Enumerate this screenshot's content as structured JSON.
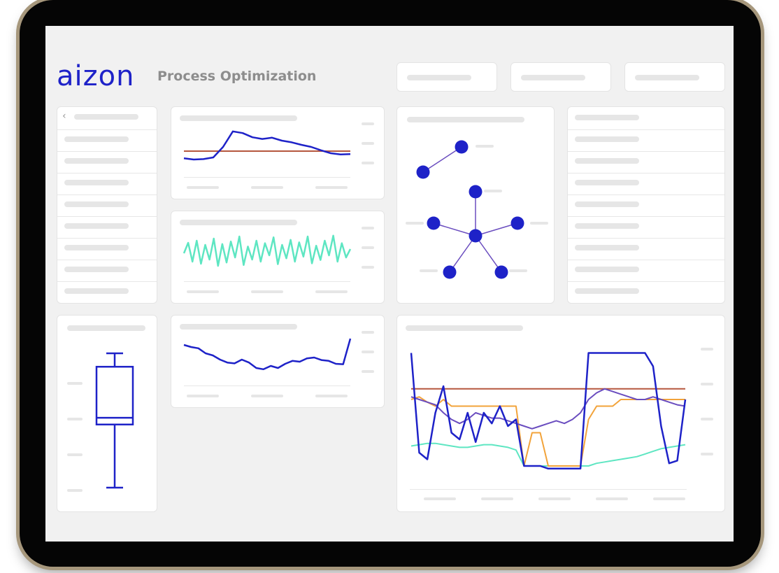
{
  "brand": {
    "logo": "aizon",
    "color": "#1e22c8"
  },
  "header": {
    "title": "Process Optimization"
  },
  "icons": {
    "back": "chevron-left-icon"
  },
  "colors": {
    "blue": "#1e22c8",
    "teal": "#5ee6c2",
    "brown": "#b5573e",
    "orange": "#f2a33a",
    "purple": "#6a4dbf",
    "device_frame": "#a6977c"
  },
  "chart_data": [
    {
      "type": "line",
      "name_hint": "trend-vs-threshold",
      "series": [
        {
          "values": [
            0.28,
            0.25,
            0.26,
            0.3,
            0.55,
            0.92,
            0.88,
            0.78,
            0.74,
            0.77,
            0.7,
            0.66,
            0.6,
            0.55,
            0.47,
            0.4,
            0.37,
            0.38
          ]
        },
        {
          "values": [
            0.45,
            0.45,
            0.45,
            0.45,
            0.45,
            0.45,
            0.45,
            0.45,
            0.45,
            0.45,
            0.45,
            0.45,
            0.45,
            0.45,
            0.45,
            0.45,
            0.45,
            0.45
          ]
        }
      ]
    },
    {
      "type": "line",
      "name_hint": "oscillation",
      "series": [
        {
          "values": [
            0.5,
            0.75,
            0.3,
            0.8,
            0.25,
            0.7,
            0.35,
            0.85,
            0.2,
            0.72,
            0.28,
            0.78,
            0.4,
            0.9,
            0.22,
            0.66,
            0.35,
            0.8,
            0.3,
            0.74,
            0.45,
            0.88,
            0.24,
            0.7,
            0.38,
            0.82,
            0.3,
            0.76,
            0.42,
            0.9,
            0.26,
            0.68,
            0.34,
            0.8,
            0.45,
            0.92,
            0.3,
            0.74,
            0.4,
            0.6
          ]
        }
      ]
    },
    {
      "type": "line",
      "name_hint": "drift",
      "series": [
        {
          "values": [
            0.8,
            0.75,
            0.72,
            0.6,
            0.55,
            0.45,
            0.38,
            0.36,
            0.45,
            0.38,
            0.25,
            0.22,
            0.3,
            0.25,
            0.35,
            0.42,
            0.4,
            0.48,
            0.5,
            0.44,
            0.42,
            0.35,
            0.34,
            0.95
          ]
        }
      ]
    },
    {
      "type": "boxplot",
      "min": 0.0,
      "q1": 0.47,
      "median": 0.52,
      "q3": 0.9,
      "max": 1.0
    },
    {
      "type": "line",
      "name_hint": "multi-signal",
      "series": [
        {
          "values": [
            0.95,
            0.2,
            0.15,
            0.5,
            0.7,
            0.35,
            0.3,
            0.5,
            0.28,
            0.5,
            0.42,
            0.55,
            0.4,
            0.45,
            0.1,
            0.1,
            0.1,
            0.08,
            0.08,
            0.08,
            0.08,
            0.08,
            0.95,
            0.95,
            0.95,
            0.95,
            0.95,
            0.95,
            0.95,
            0.95,
            0.85,
            0.4,
            0.12,
            0.14,
            0.6
          ]
        },
        {
          "values": [
            0.68,
            0.68,
            0.68,
            0.68,
            0.68,
            0.68,
            0.68,
            0.68,
            0.68,
            0.68,
            0.68,
            0.68,
            0.68,
            0.68,
            0.68,
            0.68,
            0.68,
            0.68,
            0.68,
            0.68,
            0.68,
            0.68,
            0.68,
            0.68,
            0.68,
            0.68,
            0.68,
            0.68,
            0.68,
            0.68,
            0.68,
            0.68,
            0.68,
            0.68,
            0.68
          ]
        },
        {
          "values": [
            0.6,
            0.62,
            0.58,
            0.55,
            0.6,
            0.55,
            0.55,
            0.55,
            0.55,
            0.55,
            0.55,
            0.55,
            0.55,
            0.55,
            0.1,
            0.35,
            0.35,
            0.1,
            0.1,
            0.1,
            0.1,
            0.1,
            0.45,
            0.55,
            0.55,
            0.55,
            0.6,
            0.6,
            0.6,
            0.6,
            0.6,
            0.6,
            0.6,
            0.6,
            0.6
          ]
        },
        {
          "values": [
            0.62,
            0.6,
            0.58,
            0.56,
            0.5,
            0.45,
            0.42,
            0.45,
            0.5,
            0.48,
            0.46,
            0.46,
            0.44,
            0.42,
            0.4,
            0.38,
            0.4,
            0.42,
            0.44,
            0.42,
            0.45,
            0.5,
            0.6,
            0.65,
            0.68,
            0.66,
            0.64,
            0.62,
            0.6,
            0.6,
            0.62,
            0.6,
            0.58,
            0.56,
            0.55
          ]
        },
        {
          "values": [
            0.25,
            0.26,
            0.27,
            0.27,
            0.26,
            0.25,
            0.24,
            0.24,
            0.25,
            0.26,
            0.26,
            0.25,
            0.24,
            0.22,
            0.1,
            0.1,
            0.1,
            0.1,
            0.1,
            0.1,
            0.1,
            0.1,
            0.1,
            0.12,
            0.13,
            0.14,
            0.15,
            0.16,
            0.17,
            0.19,
            0.21,
            0.23,
            0.24,
            0.25,
            0.26
          ]
        }
      ]
    }
  ]
}
